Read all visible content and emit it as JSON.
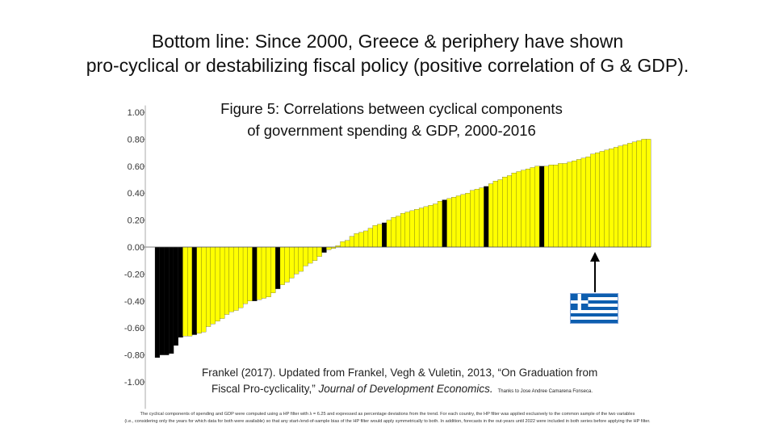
{
  "slide_title": {
    "line1": "Bottom line:  Since 2000, Greece & periphery have shown",
    "line2": "pro-cyclical or destabilizing fiscal policy (positive correlation of G & GDP)."
  },
  "figure_title": {
    "line1": "Figure 5: Correlations between cyclical components",
    "line2": "of government spending & GDP, 2000-2016"
  },
  "source": {
    "line1": "Frankel (2017). Updated from Frankel, Vegh & Vuletin, 2013, “On Graduation from",
    "line2_prefix": "Fiscal Pro-cyclicality,” ",
    "journal": "Journal of Development Economics.",
    "thanks": "Thanks to Jose Andree Camarena Fonseca."
  },
  "footnote": {
    "line1": "The cyclical components of spending and GDP were computed using a HP filter with λ = 6.25 and expressed as percentage deviations from the trend. For each country, the HP filter was applied exclusively to the common sample of the two variables",
    "line2": "(i.e., considering only the years for which data for both were available) so that any start-/end-of-sample bias of the HP filter would apply symmetrically to both. In addition, forecasts in the out-years until 2022 were included in both series before applying the HP filter."
  },
  "flag": {
    "country": "Greece",
    "blue": "#0d5eaf",
    "white": "#ffffff"
  },
  "colors": {
    "yellow": "#ffff00",
    "black": "#000000",
    "axis": "#aaaaaa",
    "tick_text": "#333333",
    "arrow": "#000000"
  },
  "chart_data": {
    "type": "bar",
    "title": "Figure 5: Correlations between cyclical components of government spending & GDP, 2000-2016",
    "xlabel": "",
    "ylabel": "",
    "ylim": [
      -1.2,
      1.05
    ],
    "yticks": [
      1.0,
      0.8,
      0.6,
      0.4,
      0.2,
      0.0,
      -0.2,
      -0.4,
      -0.6,
      -0.8,
      -1.0
    ],
    "ytick_labels": [
      "1.00",
      "0.80",
      "0.60",
      "0.40",
      "0.20",
      "0.00",
      "-0.20",
      "-0.40",
      "-0.60",
      "-0.80",
      "-1.00"
    ],
    "highlighted_country": "Greece",
    "values": [
      -0.82,
      -0.8,
      -0.8,
      -0.79,
      -0.73,
      -0.67,
      -0.66,
      -0.66,
      -0.65,
      -0.64,
      -0.63,
      -0.59,
      -0.57,
      -0.55,
      -0.53,
      -0.5,
      -0.48,
      -0.47,
      -0.45,
      -0.42,
      -0.4,
      -0.4,
      -0.39,
      -0.38,
      -0.37,
      -0.34,
      -0.31,
      -0.28,
      -0.26,
      -0.23,
      -0.2,
      -0.18,
      -0.14,
      -0.12,
      -0.1,
      -0.07,
      -0.04,
      -0.02,
      -0.01,
      0.01,
      0.04,
      0.05,
      0.08,
      0.1,
      0.11,
      0.12,
      0.14,
      0.16,
      0.17,
      0.18,
      0.2,
      0.22,
      0.23,
      0.25,
      0.26,
      0.27,
      0.28,
      0.29,
      0.3,
      0.31,
      0.32,
      0.34,
      0.35,
      0.36,
      0.37,
      0.38,
      0.39,
      0.4,
      0.42,
      0.43,
      0.44,
      0.45,
      0.47,
      0.49,
      0.5,
      0.52,
      0.53,
      0.55,
      0.56,
      0.57,
      0.58,
      0.59,
      0.6,
      0.6,
      0.6,
      0.61,
      0.61,
      0.62,
      0.62,
      0.63,
      0.64,
      0.65,
      0.66,
      0.67,
      0.69,
      0.7,
      0.71,
      0.72,
      0.73,
      0.74,
      0.75,
      0.76,
      0.77,
      0.78,
      0.79,
      0.8,
      0.8
    ],
    "colors": [
      "black",
      "black",
      "black",
      "black",
      "black",
      "black",
      "yellow",
      "yellow",
      "black",
      "yellow",
      "yellow",
      "yellow",
      "yellow",
      "yellow",
      "yellow",
      "yellow",
      "yellow",
      "yellow",
      "yellow",
      "yellow",
      "yellow",
      "black",
      "yellow",
      "yellow",
      "yellow",
      "yellow",
      "black",
      "yellow",
      "yellow",
      "yellow",
      "yellow",
      "yellow",
      "yellow",
      "yellow",
      "yellow",
      "yellow",
      "black",
      "yellow",
      "yellow",
      "yellow",
      "yellow",
      "yellow",
      "yellow",
      "yellow",
      "yellow",
      "yellow",
      "yellow",
      "yellow",
      "yellow",
      "black",
      "yellow",
      "yellow",
      "yellow",
      "yellow",
      "yellow",
      "yellow",
      "yellow",
      "yellow",
      "yellow",
      "yellow",
      "yellow",
      "yellow",
      "black",
      "yellow",
      "yellow",
      "yellow",
      "yellow",
      "yellow",
      "yellow",
      "yellow",
      "yellow",
      "black",
      "yellow",
      "yellow",
      "yellow",
      "yellow",
      "yellow",
      "yellow",
      "yellow",
      "yellow",
      "yellow",
      "yellow",
      "yellow",
      "black",
      "yellow",
      "yellow",
      "yellow",
      "yellow",
      "yellow",
      "yellow",
      "yellow",
      "yellow",
      "yellow",
      "yellow",
      "yellow",
      "yellow",
      "yellow",
      "yellow",
      "yellow",
      "yellow",
      "yellow",
      "yellow",
      "yellow",
      "yellow",
      "yellow",
      "yellow",
      "yellow"
    ],
    "annotations": [
      "Arrow pointing to Greece bar"
    ]
  }
}
